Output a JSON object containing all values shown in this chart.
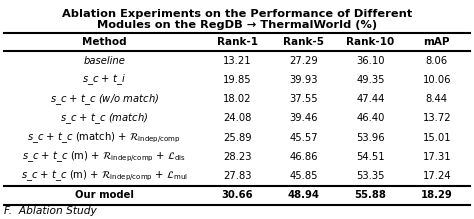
{
  "title_line1": "Ablation Experiments on the Performance of Different",
  "title_line2": "Modules on the RegDB → ThermalWorld (%)",
  "headers": [
    "Method",
    "Rank-1",
    "Rank-5",
    "Rank-10",
    "mAP"
  ],
  "rows": [
    {
      "method_text": "baseline",
      "style": "italic_center",
      "r1": "13.21",
      "r5": "27.29",
      "r10": "36.10",
      "map": "8.06"
    },
    {
      "method_text": "$s$_$c$ + $t$_$i$",
      "style": "italic_center",
      "r1": "19.85",
      "r5": "39.93",
      "r10": "49.35",
      "map": "10.06"
    },
    {
      "method_text": "$s$_$c$ + $t$_$c$ (w/o match)",
      "style": "italic_center",
      "r1": "18.02",
      "r5": "37.55",
      "r10": "47.44",
      "map": "8.44"
    },
    {
      "method_text": "$s$_$c$ + $t$_$c$ (match)",
      "style": "italic_center",
      "r1": "24.08",
      "r5": "39.46",
      "r10": "46.40",
      "map": "13.72"
    },
    {
      "method_text": "$s$_$c$ + $t$_$c$ (match) + $\\mathcal{R}_{\\mathrm{indep/comp}}$",
      "style": "center",
      "r1": "25.89",
      "r5": "45.57",
      "r10": "53.96",
      "map": "15.01"
    },
    {
      "method_text": "$s$_$c$ + $t$_$c$ (m) + $\\mathcal{R}_{\\mathrm{indep/comp}}$ + $\\mathcal{L}_{\\mathrm{dis}}$",
      "style": "center",
      "r1": "28.23",
      "r5": "46.86",
      "r10": "54.51",
      "map": "17.31"
    },
    {
      "method_text": "$s$_$c$ + $t$_$c$ (m) + $\\mathcal{R}_{\\mathrm{indep/comp}}$ + $\\mathcal{L}_{\\mathrm{mul}}$",
      "style": "center",
      "r1": "27.83",
      "r5": "45.85",
      "r10": "53.35",
      "map": "17.24"
    },
    {
      "method_text": "Our model",
      "style": "bold_center",
      "r1": "30.66",
      "r5": "48.94",
      "r10": "55.88",
      "map": "18.29"
    }
  ],
  "bg_color": "#ffffff",
  "footer_text": "F.  Ablation Study",
  "title_fontsize": 8.2,
  "body_fontsize": 7.2,
  "header_fontsize": 7.5
}
